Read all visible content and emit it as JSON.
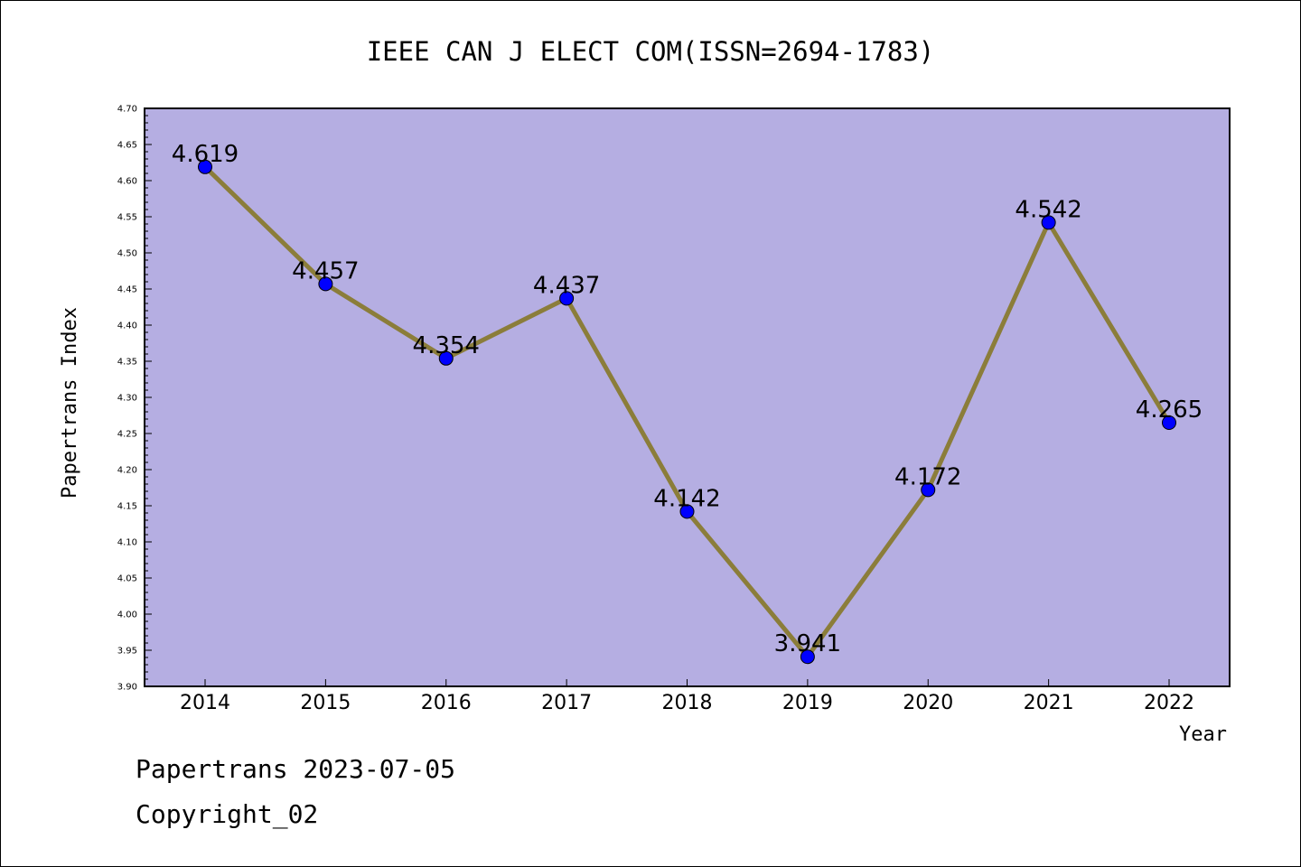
{
  "chart_data": {
    "type": "line",
    "title": "IEEE CAN J ELECT COM(ISSN=2694-1783)",
    "xlabel": "Year",
    "ylabel": "Papertrans Index",
    "x": [
      "2014",
      "2015",
      "2016",
      "2017",
      "2018",
      "2019",
      "2020",
      "2021",
      "2022"
    ],
    "values": [
      4.619,
      4.457,
      4.354,
      4.437,
      4.142,
      3.941,
      4.172,
      4.542,
      4.265
    ],
    "data_labels": [
      "4.619",
      "4.457",
      "4.354",
      "4.437",
      "4.142",
      "3.941",
      "4.172",
      "4.542",
      "4.265"
    ],
    "ylim": [
      3.9,
      4.7
    ],
    "yticks": [
      "3.90",
      "3.95",
      "4.00",
      "4.05",
      "4.10",
      "4.15",
      "4.20",
      "4.25",
      "4.30",
      "4.35",
      "4.40",
      "4.45",
      "4.50",
      "4.55",
      "4.60",
      "4.65",
      "4.70"
    ],
    "grid": false,
    "colors": {
      "plot_background": "#b5aee2",
      "line": "#8b7d3a",
      "marker": "#0000ff"
    }
  },
  "footer": {
    "line1": "Papertrans 2023-07-05",
    "line2": "Copyright_02"
  }
}
